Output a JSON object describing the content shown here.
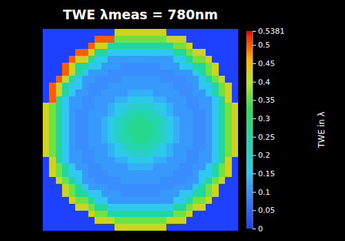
{
  "chart_data": {
    "type": "heatmap",
    "title": "TWE λmeas = 780nm",
    "tick_labels": false,
    "colorbar_label": "TWE in λ",
    "colorbar_range": [
      0,
      0.5381
    ],
    "colorbar_ticks": [
      0,
      0.05,
      0.1,
      0.15,
      0.2,
      0.25,
      0.3,
      0.35,
      0.4,
      0.45,
      0.5,
      0.5381
    ],
    "cells": [
      [
        0,
        0,
        0,
        0,
        0,
        0,
        0,
        0,
        0,
        0,
        0,
        0.42,
        0.42,
        0.42,
        0.42,
        0.42,
        0.42,
        0.42,
        0.42,
        0,
        0,
        0,
        0,
        0,
        0,
        0,
        0,
        0,
        0,
        0
      ],
      [
        0,
        0,
        0,
        0,
        0,
        0,
        0,
        0,
        0.5,
        0.5,
        0.5,
        0.36,
        0.36,
        0.36,
        0.36,
        0.36,
        0.36,
        0.36,
        0.36,
        0.42,
        0.42,
        0.42,
        0,
        0,
        0,
        0,
        0,
        0,
        0,
        0
      ],
      [
        0,
        0,
        0,
        0,
        0,
        0,
        0,
        0.5,
        0.42,
        0.42,
        0.25,
        0.25,
        0.25,
        0.25,
        0.25,
        0.25,
        0.25,
        0.25,
        0.25,
        0.25,
        0.36,
        0.36,
        0.42,
        0,
        0,
        0,
        0,
        0,
        0,
        0
      ],
      [
        0,
        0,
        0,
        0,
        0,
        0.5,
        0.5,
        0.42,
        0.25,
        0.25,
        0.15,
        0.15,
        0.15,
        0.15,
        0.15,
        0.15,
        0.15,
        0.15,
        0.15,
        0.15,
        0.25,
        0.25,
        0.36,
        0.42,
        0.42,
        0,
        0,
        0,
        0,
        0
      ],
      [
        0,
        0,
        0,
        0,
        0.5,
        0.42,
        0.42,
        0.25,
        0.15,
        0.15,
        0.11,
        0.11,
        0.11,
        0.11,
        0.11,
        0.11,
        0.11,
        0.11,
        0.11,
        0.11,
        0.15,
        0.15,
        0.25,
        0.36,
        0.36,
        0.42,
        0,
        0,
        0,
        0
      ],
      [
        0,
        0,
        0,
        0.5,
        0.42,
        0.25,
        0.25,
        0.15,
        0.15,
        0.11,
        0.11,
        0.11,
        0.1,
        0.1,
        0.1,
        0.1,
        0.1,
        0.1,
        0.11,
        0.11,
        0.11,
        0.15,
        0.15,
        0.25,
        0.25,
        0.36,
        0.42,
        0,
        0,
        0
      ],
      [
        0,
        0,
        0,
        0.5,
        0.42,
        0.25,
        0.15,
        0.11,
        0.11,
        0.11,
        0.1,
        0.1,
        0.1,
        0.1,
        0.1,
        0.1,
        0.1,
        0.1,
        0.1,
        0.1,
        0.11,
        0.11,
        0.11,
        0.15,
        0.25,
        0.36,
        0.42,
        0,
        0,
        0
      ],
      [
        0,
        0,
        0.5,
        0.42,
        0.25,
        0.15,
        0.11,
        0.11,
        0.1,
        0.1,
        0.1,
        0.1,
        0.11,
        0.11,
        0.11,
        0.11,
        0.11,
        0.11,
        0.1,
        0.1,
        0.1,
        0.1,
        0.11,
        0.11,
        0.15,
        0.25,
        0.36,
        0.42,
        0,
        0
      ],
      [
        0,
        0.5,
        0.42,
        0.25,
        0.15,
        0.15,
        0.11,
        0.1,
        0.1,
        0.1,
        0.11,
        0.11,
        0.11,
        0.11,
        0.11,
        0.11,
        0.11,
        0.11,
        0.11,
        0.11,
        0.1,
        0.1,
        0.1,
        0.11,
        0.15,
        0.15,
        0.25,
        0.36,
        0.42,
        0
      ],
      [
        0,
        0.5,
        0.42,
        0.25,
        0.15,
        0.11,
        0.11,
        0.1,
        0.1,
        0.11,
        0.11,
        0.11,
        0.11,
        0.13,
        0.13,
        0.13,
        0.13,
        0.11,
        0.11,
        0.11,
        0.11,
        0.1,
        0.1,
        0.11,
        0.11,
        0.15,
        0.25,
        0.36,
        0.42,
        0
      ],
      [
        0,
        0.5,
        0.25,
        0.15,
        0.11,
        0.11,
        0.1,
        0.1,
        0.11,
        0.11,
        0.11,
        0.13,
        0.13,
        0.16,
        0.16,
        0.16,
        0.16,
        0.13,
        0.13,
        0.11,
        0.11,
        0.11,
        0.1,
        0.1,
        0.11,
        0.11,
        0.15,
        0.25,
        0.42,
        0
      ],
      [
        0.42,
        0.36,
        0.25,
        0.15,
        0.11,
        0.11,
        0.1,
        0.1,
        0.11,
        0.11,
        0.13,
        0.16,
        0.16,
        0.2,
        0.2,
        0.2,
        0.2,
        0.16,
        0.16,
        0.13,
        0.11,
        0.11,
        0.1,
        0.1,
        0.11,
        0.11,
        0.15,
        0.25,
        0.36,
        0.42
      ],
      [
        0.42,
        0.36,
        0.25,
        0.15,
        0.11,
        0.1,
        0.1,
        0.11,
        0.11,
        0.11,
        0.13,
        0.16,
        0.2,
        0.24,
        0.24,
        0.24,
        0.24,
        0.2,
        0.16,
        0.13,
        0.11,
        0.11,
        0.11,
        0.1,
        0.1,
        0.11,
        0.15,
        0.25,
        0.36,
        0.42
      ],
      [
        0.42,
        0.36,
        0.25,
        0.15,
        0.11,
        0.1,
        0.1,
        0.11,
        0.11,
        0.13,
        0.16,
        0.2,
        0.24,
        0.24,
        0.27,
        0.27,
        0.24,
        0.24,
        0.2,
        0.16,
        0.13,
        0.11,
        0.11,
        0.1,
        0.1,
        0.11,
        0.15,
        0.25,
        0.36,
        0.42
      ],
      [
        0.42,
        0.36,
        0.25,
        0.15,
        0.11,
        0.1,
        0.1,
        0.11,
        0.11,
        0.13,
        0.16,
        0.2,
        0.24,
        0.27,
        0.27,
        0.27,
        0.27,
        0.24,
        0.2,
        0.16,
        0.13,
        0.11,
        0.11,
        0.1,
        0.1,
        0.11,
        0.15,
        0.25,
        0.36,
        0.42
      ],
      [
        0.42,
        0.36,
        0.25,
        0.15,
        0.11,
        0.1,
        0.1,
        0.11,
        0.11,
        0.13,
        0.16,
        0.2,
        0.24,
        0.27,
        0.27,
        0.27,
        0.27,
        0.24,
        0.2,
        0.16,
        0.13,
        0.11,
        0.11,
        0.1,
        0.1,
        0.11,
        0.15,
        0.25,
        0.36,
        0.42
      ],
      [
        0.42,
        0.36,
        0.25,
        0.15,
        0.11,
        0.1,
        0.1,
        0.11,
        0.11,
        0.13,
        0.16,
        0.2,
        0.24,
        0.24,
        0.27,
        0.27,
        0.24,
        0.24,
        0.2,
        0.16,
        0.13,
        0.11,
        0.11,
        0.1,
        0.1,
        0.11,
        0.15,
        0.25,
        0.36,
        0.42
      ],
      [
        0.42,
        0.36,
        0.25,
        0.15,
        0.11,
        0.1,
        0.1,
        0.11,
        0.11,
        0.11,
        0.13,
        0.16,
        0.2,
        0.24,
        0.24,
        0.24,
        0.24,
        0.2,
        0.16,
        0.13,
        0.11,
        0.11,
        0.11,
        0.1,
        0.1,
        0.11,
        0.15,
        0.25,
        0.36,
        0.42
      ],
      [
        0.42,
        0.36,
        0.25,
        0.15,
        0.11,
        0.11,
        0.1,
        0.1,
        0.11,
        0.11,
        0.13,
        0.16,
        0.16,
        0.2,
        0.2,
        0.2,
        0.2,
        0.16,
        0.16,
        0.13,
        0.11,
        0.11,
        0.1,
        0.1,
        0.11,
        0.11,
        0.15,
        0.25,
        0.36,
        0.42
      ],
      [
        0,
        0.42,
        0.25,
        0.15,
        0.11,
        0.11,
        0.1,
        0.1,
        0.11,
        0.11,
        0.11,
        0.13,
        0.13,
        0.16,
        0.16,
        0.16,
        0.16,
        0.13,
        0.13,
        0.11,
        0.11,
        0.11,
        0.1,
        0.1,
        0.11,
        0.11,
        0.15,
        0.25,
        0.42,
        0
      ],
      [
        0,
        0.42,
        0.36,
        0.25,
        0.15,
        0.11,
        0.11,
        0.1,
        0.1,
        0.11,
        0.11,
        0.11,
        0.11,
        0.13,
        0.13,
        0.13,
        0.13,
        0.11,
        0.11,
        0.11,
        0.11,
        0.1,
        0.1,
        0.11,
        0.11,
        0.15,
        0.25,
        0.36,
        0.42,
        0
      ],
      [
        0,
        0.42,
        0.36,
        0.25,
        0.15,
        0.15,
        0.11,
        0.1,
        0.1,
        0.1,
        0.11,
        0.11,
        0.11,
        0.11,
        0.11,
        0.11,
        0.11,
        0.11,
        0.11,
        0.11,
        0.1,
        0.1,
        0.1,
        0.11,
        0.15,
        0.15,
        0.25,
        0.36,
        0.42,
        0
      ],
      [
        0,
        0,
        0.42,
        0.36,
        0.25,
        0.15,
        0.11,
        0.11,
        0.1,
        0.1,
        0.1,
        0.1,
        0.11,
        0.11,
        0.11,
        0.11,
        0.11,
        0.11,
        0.1,
        0.1,
        0.1,
        0.1,
        0.11,
        0.11,
        0.15,
        0.25,
        0.36,
        0.42,
        0,
        0
      ],
      [
        0,
        0,
        0,
        0.42,
        0.36,
        0.25,
        0.15,
        0.11,
        0.11,
        0.11,
        0.1,
        0.1,
        0.1,
        0.1,
        0.1,
        0.1,
        0.1,
        0.1,
        0.1,
        0.1,
        0.11,
        0.11,
        0.11,
        0.15,
        0.25,
        0.36,
        0.42,
        0,
        0,
        0
      ],
      [
        0,
        0,
        0,
        0.42,
        0.36,
        0.25,
        0.25,
        0.15,
        0.15,
        0.11,
        0.11,
        0.11,
        0.1,
        0.1,
        0.1,
        0.1,
        0.1,
        0.1,
        0.11,
        0.11,
        0.11,
        0.15,
        0.15,
        0.25,
        0.25,
        0.36,
        0.42,
        0,
        0,
        0
      ],
      [
        0,
        0,
        0,
        0,
        0.42,
        0.36,
        0.36,
        0.25,
        0.15,
        0.15,
        0.11,
        0.11,
        0.11,
        0.11,
        0.11,
        0.11,
        0.11,
        0.11,
        0.11,
        0.11,
        0.15,
        0.15,
        0.25,
        0.36,
        0.36,
        0.42,
        0,
        0,
        0,
        0
      ],
      [
        0,
        0,
        0,
        0,
        0,
        0.42,
        0.42,
        0.36,
        0.25,
        0.25,
        0.15,
        0.15,
        0.15,
        0.15,
        0.15,
        0.15,
        0.15,
        0.15,
        0.15,
        0.15,
        0.25,
        0.25,
        0.36,
        0.42,
        0.42,
        0,
        0,
        0,
        0,
        0
      ],
      [
        0,
        0,
        0,
        0,
        0,
        0,
        0,
        0.42,
        0.36,
        0.36,
        0.25,
        0.25,
        0.25,
        0.25,
        0.25,
        0.25,
        0.25,
        0.25,
        0.25,
        0.25,
        0.36,
        0.36,
        0.42,
        0,
        0,
        0,
        0,
        0,
        0,
        0
      ],
      [
        0,
        0,
        0,
        0,
        0,
        0,
        0,
        0,
        0.42,
        0.42,
        0.42,
        0.36,
        0.36,
        0.36,
        0.36,
        0.36,
        0.36,
        0.36,
        0.36,
        0.42,
        0.42,
        0.42,
        0,
        0,
        0,
        0,
        0,
        0,
        0,
        0
      ],
      [
        0,
        0,
        0,
        0,
        0,
        0,
        0,
        0,
        0,
        0,
        0,
        0.42,
        0.42,
        0.42,
        0.42,
        0.42,
        0.42,
        0.42,
        0.42,
        0,
        0,
        0,
        0,
        0,
        0,
        0,
        0,
        0,
        0,
        0
      ]
    ]
  }
}
